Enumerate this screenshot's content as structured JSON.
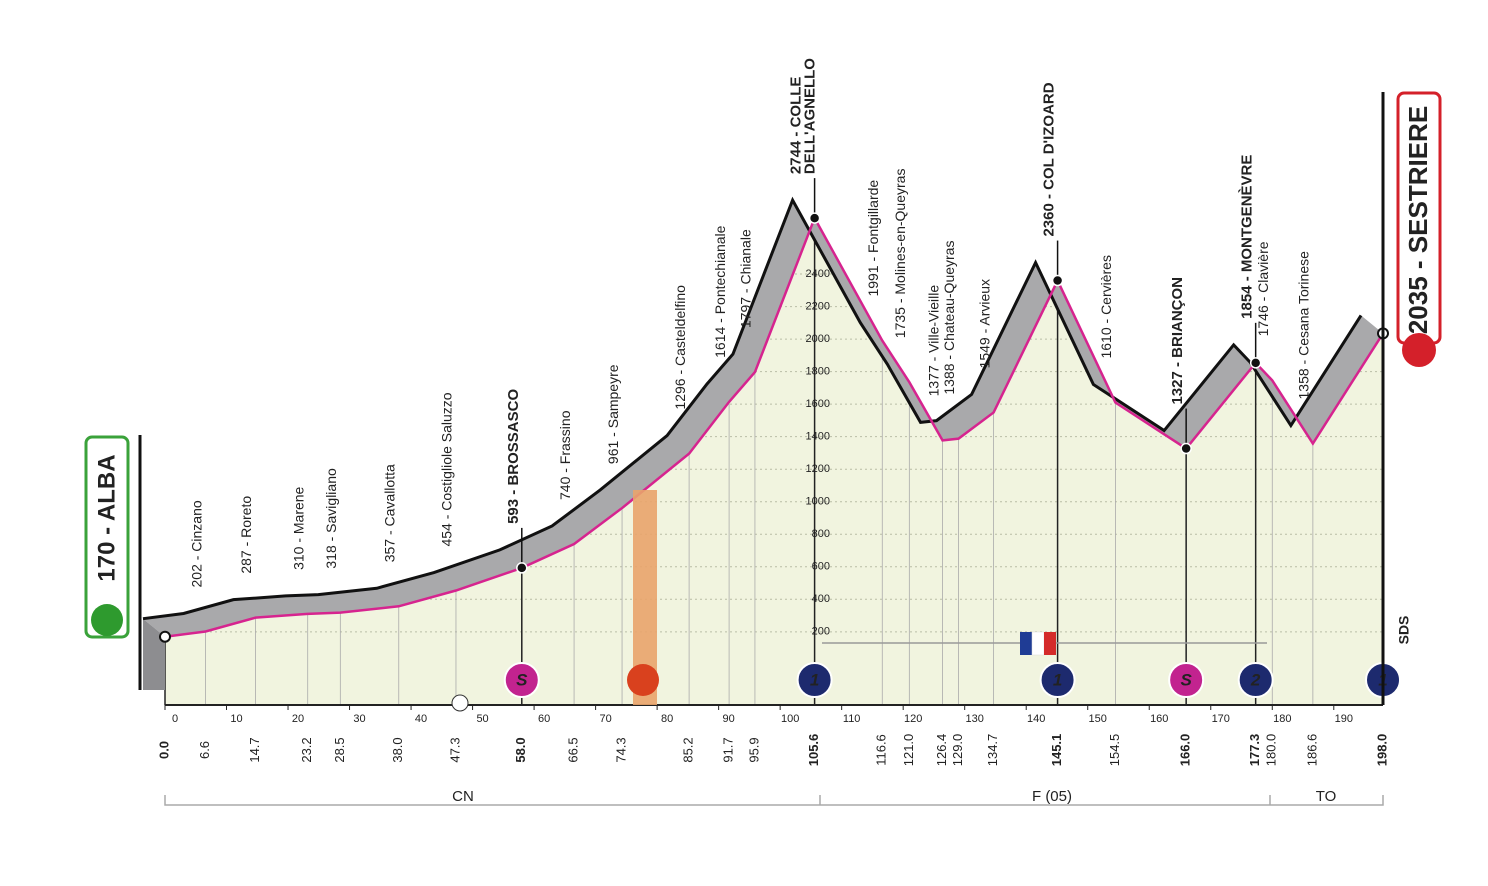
{
  "chart_data": {
    "type": "area",
    "x": [
      {
        "value": 0,
        "label": "0.0"
      },
      6.6,
      14.7,
      23.2,
      28.5,
      {
        "value": 38,
        "label": "38.0"
      },
      47.3,
      {
        "value": 58,
        "label": "58.0"
      },
      66.5,
      74.3,
      85.2,
      91.7,
      95.9,
      105.6,
      116.6,
      {
        "value": 121,
        "label": "121.0"
      },
      126.4,
      {
        "value": 129,
        "label": "129.0"
      },
      134.7,
      145.1,
      154.5,
      {
        "value": 166,
        "label": "166.0"
      },
      177.3,
      {
        "value": 180,
        "label": "180.0"
      },
      186.6,
      {
        "value": 198,
        "label": "198.0"
      }
    ],
    "values": [
      170,
      202,
      287,
      310,
      318,
      357,
      454,
      593,
      740,
      961,
      1296,
      1614,
      1797,
      2744,
      1991,
      1735,
      1377,
      1388,
      1549,
      2360,
      1610,
      1327,
      1854,
      1746,
      1358,
      2035
    ],
    "labels": [
      "170 - ALBA",
      "202 - Cinzano",
      "287 - Roreto",
      "310 - Marene",
      "318 - Savigliano",
      "357 - Cavallotta",
      "454 - Costigliole Saluzzo",
      "593 - BROSSASCO",
      "740 - Frassino",
      "961 - Sampeyre",
      "1296 - Casteldelfino",
      "1614 - Pontechianale",
      "1797 - Chianale",
      [
        "2744 - COLLE",
        "DELL'AGNELLO"
      ],
      "1991 - Fontgillarde",
      "1735 - Molines-en-Queyras",
      "1377 - Ville-Vieille",
      "1388 - Chateau-Queyras",
      "1549 - Arvieux",
      "2360 - COL D'IZOARD",
      "1610 - Cervières",
      "1327 - BRIANÇON",
      "1854 - MONTGENÈVRE",
      "1746 - Clavière",
      "1358 - Cesana Torinese",
      "2035 - SESTRIERE"
    ],
    "markers": [
      null,
      null,
      null,
      null,
      null,
      null,
      null,
      "S",
      null,
      null,
      null,
      null,
      null,
      "1",
      null,
      null,
      null,
      null,
      null,
      "1",
      null,
      "S",
      "2",
      null,
      null,
      "1"
    ],
    "xlim": [
      0,
      198
    ],
    "xticks": [
      0,
      10,
      20,
      30,
      40,
      50,
      60,
      70,
      80,
      90,
      100,
      110,
      120,
      130,
      140,
      150,
      160,
      170,
      180,
      190
    ],
    "ylim": [
      -250,
      2800
    ],
    "yticks": [
      200,
      400,
      600,
      800,
      1000,
      1200,
      1400,
      1600,
      1800,
      2000,
      2200,
      2400
    ],
    "grid": true,
    "line_color": "#d6248f",
    "fill_color": "#f1f4df",
    "band_color": "#a9a9ab",
    "regions": [
      "CN",
      "F (05)",
      "TO"
    ],
    "logo_text": "SDS"
  }
}
